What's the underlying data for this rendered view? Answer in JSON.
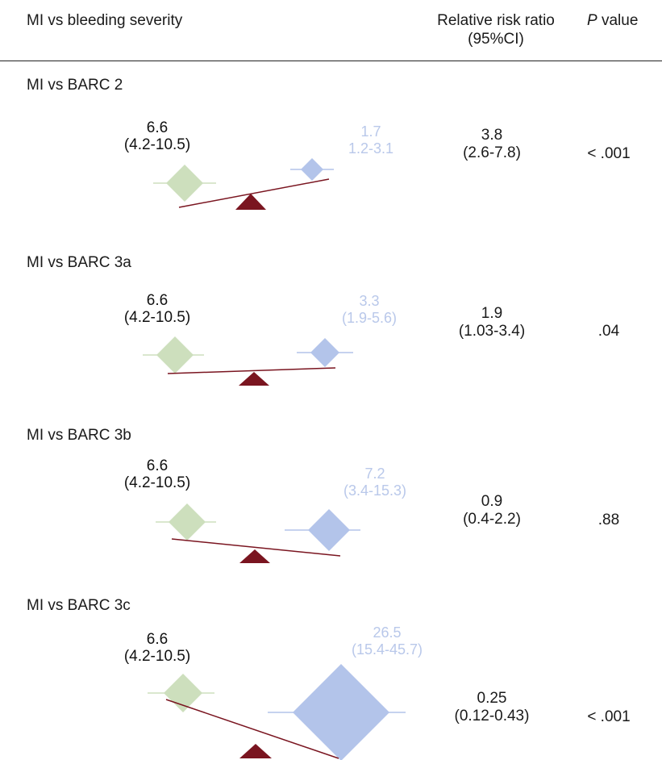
{
  "header": {
    "title": "MI vs bleeding severity",
    "rr_line1": "Relative risk ratio",
    "rr_line2": "(95%CI)",
    "p_italic": "P",
    "p_rest": " value"
  },
  "colors": {
    "mi": "#cddfbd",
    "bleed": "#b3c4ea",
    "fulcrum": "#7a1520",
    "beam": "#7a1520"
  },
  "panels": [
    {
      "title": "MI vs BARC 2",
      "mi_value": "6.6",
      "mi_ci": "(4.2-10.5)",
      "bleed_value": "1.7",
      "bleed_ci": "1.2-3.1",
      "rr": "3.8",
      "rr_ci": "(2.6-7.8)",
      "p": "< .001"
    },
    {
      "title": "MI vs BARC 3a",
      "mi_value": "6.6",
      "mi_ci": "(4.2-10.5)",
      "bleed_value": "3.3",
      "bleed_ci": "(1.9-5.6)",
      "rr": "1.9",
      "rr_ci": "(1.03-3.4)",
      "p": ".04"
    },
    {
      "title": "MI vs BARC 3b",
      "mi_value": "6.6",
      "mi_ci": "(4.2-10.5)",
      "bleed_value": "7.2",
      "bleed_ci": "(3.4-15.3)",
      "rr": "0.9",
      "rr_ci": "(0.4-2.2)",
      "p": ".88"
    },
    {
      "title": "MI vs BARC 3c",
      "mi_value": "6.6",
      "mi_ci": "(4.2-10.5)",
      "bleed_value": "26.5",
      "bleed_ci": "(15.4-45.7)",
      "rr": "0.25",
      "rr_ci": "(0.12-0.43)",
      "p": "< .001"
    }
  ]
}
